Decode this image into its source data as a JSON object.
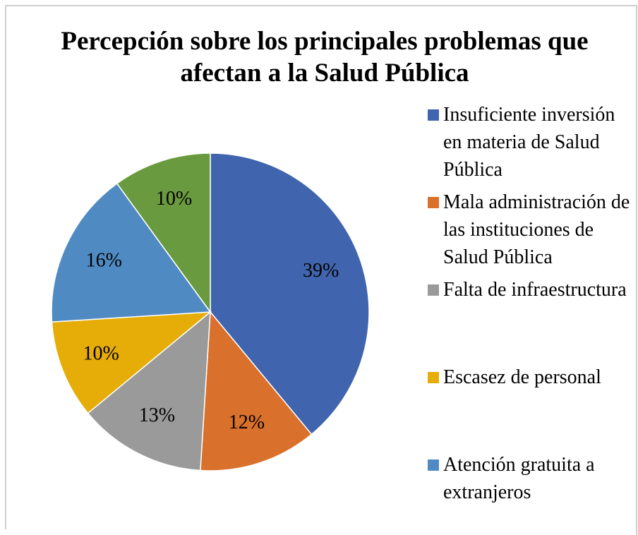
{
  "chart_data": {
    "type": "pie",
    "title": "Percepción sobre los principales problemas que afectan a la Salud Pública",
    "categories": [
      "Insuficiente inversión en materia de Salud Pública",
      "Mala administración de las instituciones de Salud Pública",
      "Falta de infraestructura",
      "Escasez de personal",
      "Atención gratuita a extranjeros",
      null
    ],
    "values": [
      39,
      12,
      13,
      10,
      16,
      10
    ],
    "value_labels": [
      "39%",
      "12%",
      "13%",
      "10%",
      "16%",
      "10%"
    ],
    "colors": [
      "#4064ad",
      "#d9702b",
      "#9a9a9a",
      "#e6ac07",
      "#4f8bc2",
      "#6a9a3f"
    ],
    "legend": "right"
  }
}
